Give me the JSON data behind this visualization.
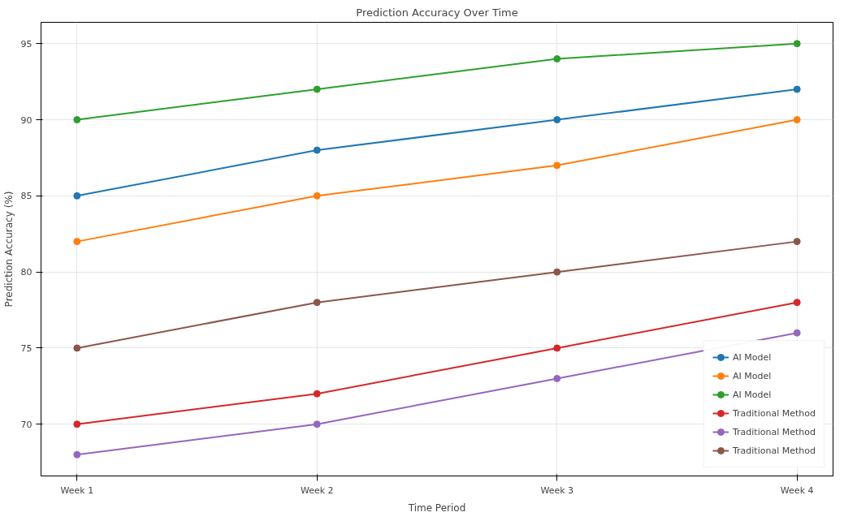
{
  "chart_data": {
    "type": "line",
    "title": "Prediction Accuracy Over Time",
    "xlabel": "Time Period",
    "ylabel": "Prediction Accuracy (%)",
    "categories": [
      "Week 1",
      "Week 2",
      "Week 3",
      "Week 4"
    ],
    "series": [
      {
        "name": "AI Model",
        "color": "#1f77b4",
        "values": [
          85,
          88,
          90,
          92
        ]
      },
      {
        "name": "AI Model",
        "color": "#ff7f0e",
        "values": [
          82,
          85,
          87,
          90
        ]
      },
      {
        "name": "AI Model",
        "color": "#2ca02c",
        "values": [
          90,
          92,
          94,
          95
        ]
      },
      {
        "name": "Traditional Method",
        "color": "#d62728",
        "values": [
          70,
          72,
          75,
          78
        ]
      },
      {
        "name": "Traditional Method",
        "color": "#9467bd",
        "values": [
          68,
          70,
          73,
          76
        ]
      },
      {
        "name": "Traditional Method",
        "color": "#8c564b",
        "values": [
          75,
          78,
          80,
          82
        ]
      }
    ],
    "ylim": [
      66.6,
      96.4
    ],
    "yticks": [
      70,
      75,
      80,
      85,
      90,
      95
    ],
    "grid": true,
    "legend": "bottom right",
    "marker": "circle",
    "line_style": "solid"
  }
}
